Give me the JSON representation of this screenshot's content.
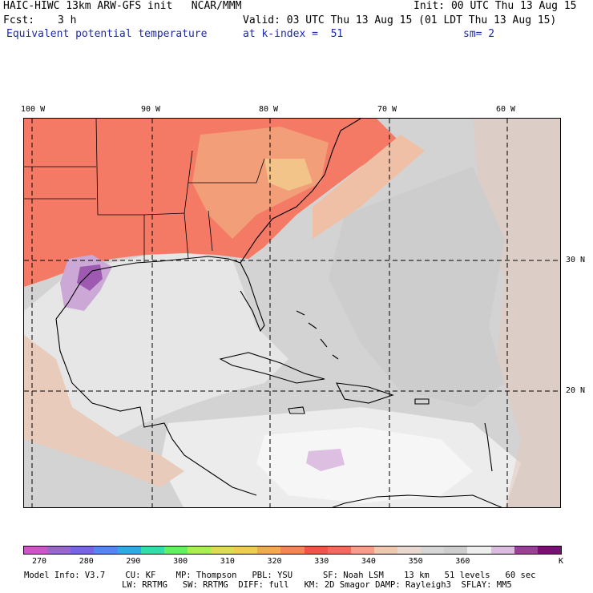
{
  "header": {
    "line1_left": "HAIC-HIWC 13km ARW-GFS init   NCAR/MMM",
    "line1_right": "Init: 00 UTC Thu 13 Aug 15",
    "fcst_label": "Fcst:",
    "fcst_value": "3 h",
    "valid": "Valid: 03 UTC Thu 13 Aug 15 (01 LDT Thu 13 Aug 15)",
    "field": "Equivalent potential temperature",
    "level": "at k-index =  51",
    "smooth": "sm= 2"
  },
  "map": {
    "lon_labels": [
      "100 W",
      "90 W",
      "80 W",
      "70 W",
      "60 W"
    ],
    "lat_labels": [
      "30 N",
      "20 N"
    ]
  },
  "colorbar": {
    "colors": [
      "#cc55cc",
      "#9966cc",
      "#7766dd",
      "#5588ee",
      "#33aadd",
      "#33ddaa",
      "#66ee66",
      "#aaee55",
      "#dddd55",
      "#eecc55",
      "#f0aa55",
      "#f08855",
      "#ee5544",
      "#f46a5a",
      "#f4a088",
      "#f0c8b0",
      "#e8d8d0",
      "#d6d6d6",
      "#cecece",
      "#eeeeee",
      "#dcbce0",
      "#9c3d9c",
      "#770f77"
    ],
    "tick_labels": [
      "270",
      "280",
      "290",
      "300",
      "310",
      "320",
      "330",
      "340",
      "350",
      "360",
      "K"
    ]
  },
  "footer": {
    "line1": "Model Info: V3.7    CU: KF    MP: Thompson   PBL: YSU      SF: Noah LSM    13 km   51 levels   60 sec",
    "line2": "LW: RRTMG   SW: RRTMG  DIFF: full   KM: 2D Smagor DAMP: Rayleigh3  SFLAY: MM5"
  }
}
